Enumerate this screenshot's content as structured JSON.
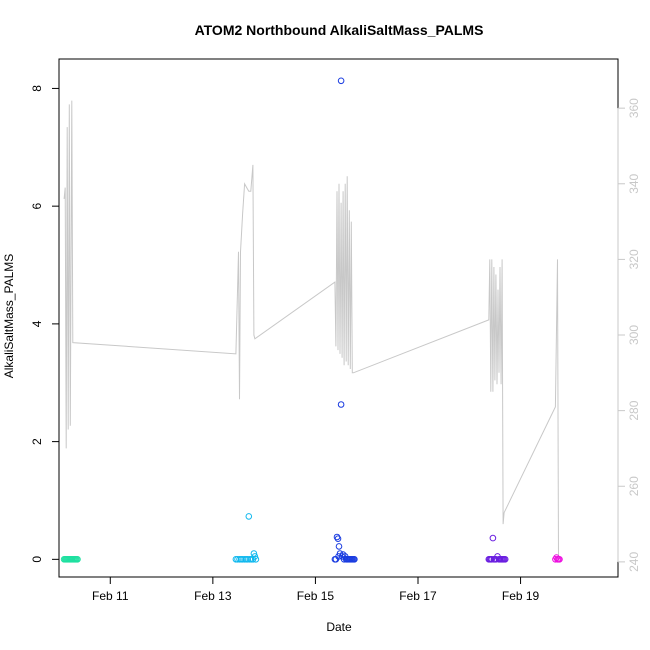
{
  "chart_data": {
    "type": "scatter",
    "title": "ATOM2 Northbound AlkaliSaltMass_PALMS",
    "xlabel": "Date",
    "ylabel": "AlkaliSaltMass_PALMS",
    "x_unit": "day",
    "x_ticks": [
      {
        "value": 11,
        "label": "Feb 11"
      },
      {
        "value": 13,
        "label": "Feb 13"
      },
      {
        "value": 15,
        "label": "Feb 15"
      },
      {
        "value": 17,
        "label": "Feb 17"
      },
      {
        "value": 19,
        "label": "Feb 19"
      }
    ],
    "xlim": [
      10.0,
      20.9
    ],
    "ylim": [
      -0.3,
      8.5
    ],
    "y_ticks": [
      0,
      2,
      4,
      6,
      8
    ],
    "y2lim": [
      236,
      373
    ],
    "y2_ticks": [
      240,
      260,
      280,
      300,
      320,
      340,
      360
    ],
    "y2_color": "#c8c8c8",
    "grid": false,
    "series": [
      {
        "color": "#1ee0a0",
        "points": [
          [
            10.1,
            0
          ],
          [
            10.12,
            0
          ],
          [
            10.14,
            0
          ],
          [
            10.16,
            0
          ],
          [
            10.18,
            0
          ],
          [
            10.2,
            0
          ],
          [
            10.22,
            0
          ],
          [
            10.24,
            0
          ],
          [
            10.26,
            0
          ],
          [
            10.28,
            0
          ],
          [
            10.3,
            0
          ],
          [
            10.32,
            0
          ],
          [
            10.34,
            0
          ],
          [
            10.36,
            0
          ]
        ]
      },
      {
        "color": "#10b8ee",
        "points": [
          [
            13.45,
            0
          ],
          [
            13.48,
            0
          ],
          [
            13.52,
            0
          ],
          [
            13.55,
            0
          ],
          [
            13.58,
            0
          ],
          [
            13.62,
            0
          ],
          [
            13.65,
            0
          ],
          [
            13.68,
            0
          ],
          [
            13.7,
            0.73
          ],
          [
            13.72,
            0
          ],
          [
            13.75,
            0
          ],
          [
            13.78,
            0
          ],
          [
            13.8,
            0.1
          ],
          [
            13.82,
            0.05
          ],
          [
            13.84,
            0
          ]
        ]
      },
      {
        "color": "#1a3ce0",
        "points": [
          [
            15.38,
            0
          ],
          [
            15.4,
            0
          ],
          [
            15.42,
            0.38
          ],
          [
            15.44,
            0.35
          ],
          [
            15.45,
            0.05
          ],
          [
            15.46,
            0.22
          ],
          [
            15.48,
            0.1
          ],
          [
            15.5,
            8.13
          ],
          [
            15.5,
            2.63
          ],
          [
            15.52,
            0.05
          ],
          [
            15.54,
            0.08
          ],
          [
            15.56,
            0
          ],
          [
            15.58,
            0.05
          ],
          [
            15.6,
            0
          ],
          [
            15.62,
            0
          ],
          [
            15.64,
            0
          ],
          [
            15.66,
            0
          ],
          [
            15.68,
            0
          ],
          [
            15.7,
            0
          ],
          [
            15.72,
            0
          ],
          [
            15.74,
            0
          ],
          [
            15.76,
            0
          ]
        ]
      },
      {
        "color": "#6a1ee0",
        "points": [
          [
            18.38,
            0
          ],
          [
            18.4,
            0
          ],
          [
            18.42,
            0
          ],
          [
            18.44,
            0
          ],
          [
            18.46,
            0.36
          ],
          [
            18.48,
            0
          ],
          [
            18.5,
            0
          ],
          [
            18.52,
            0
          ],
          [
            18.55,
            0.05
          ],
          [
            18.58,
            0
          ],
          [
            18.6,
            0
          ],
          [
            18.62,
            0
          ],
          [
            18.64,
            0
          ],
          [
            18.66,
            0
          ],
          [
            18.68,
            0
          ],
          [
            18.7,
            0
          ]
        ]
      },
      {
        "color": "#ee10e0",
        "points": [
          [
            19.68,
            0
          ],
          [
            19.7,
            0.03
          ],
          [
            19.72,
            0
          ],
          [
            19.74,
            0
          ],
          [
            19.76,
            0
          ]
        ]
      }
    ],
    "secondary_line": {
      "color": "#c8c8c8",
      "points": [
        [
          10.1,
          336
        ],
        [
          10.12,
          339
        ],
        [
          10.14,
          270
        ],
        [
          10.16,
          355
        ],
        [
          10.18,
          275
        ],
        [
          10.2,
          361
        ],
        [
          10.22,
          276
        ],
        [
          10.25,
          362
        ],
        [
          10.27,
          298
        ],
        [
          13.45,
          295
        ],
        [
          13.5,
          322
        ],
        [
          13.52,
          283
        ],
        [
          13.54,
          322
        ],
        [
          13.58,
          332
        ],
        [
          13.62,
          340
        ],
        [
          13.66,
          339
        ],
        [
          13.7,
          338
        ],
        [
          13.74,
          338
        ],
        [
          13.78,
          345
        ],
        [
          13.8,
          300
        ],
        [
          13.82,
          299
        ],
        [
          15.38,
          314
        ],
        [
          15.4,
          297
        ],
        [
          15.42,
          338
        ],
        [
          15.44,
          296
        ],
        [
          15.46,
          340
        ],
        [
          15.48,
          295
        ],
        [
          15.5,
          335
        ],
        [
          15.52,
          294
        ],
        [
          15.54,
          338
        ],
        [
          15.56,
          292
        ],
        [
          15.58,
          340
        ],
        [
          15.6,
          293
        ],
        [
          15.62,
          342
        ],
        [
          15.64,
          292
        ],
        [
          15.66,
          333
        ],
        [
          15.68,
          291
        ],
        [
          15.7,
          330
        ],
        [
          15.72,
          290
        ],
        [
          15.74,
          290
        ],
        [
          18.38,
          304
        ],
        [
          18.4,
          320
        ],
        [
          18.42,
          285
        ],
        [
          18.44,
          320
        ],
        [
          18.46,
          285
        ],
        [
          18.48,
          318
        ],
        [
          18.5,
          288
        ],
        [
          18.52,
          316
        ],
        [
          18.54,
          287
        ],
        [
          18.56,
          312
        ],
        [
          18.58,
          290
        ],
        [
          18.6,
          318
        ],
        [
          18.62,
          287
        ],
        [
          18.64,
          320
        ],
        [
          18.66,
          250
        ],
        [
          18.68,
          253
        ],
        [
          19.68,
          281
        ],
        [
          19.72,
          320
        ],
        [
          19.74,
          240
        ]
      ]
    }
  }
}
